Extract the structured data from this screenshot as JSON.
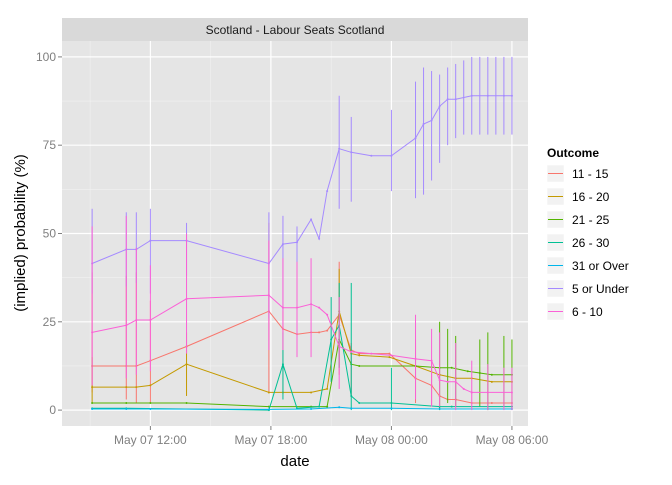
{
  "chart_data": {
    "type": "line",
    "facet_title": "Scotland - Labour Seats Scotland",
    "xlabel": "date",
    "ylabel": "(implied) probability (%)",
    "x_ticks": [
      "May 07 12:00",
      "May 07 18:00",
      "May 08 00:00",
      "May 08 06:00"
    ],
    "x_tick_hours": [
      12,
      18,
      24,
      30
    ],
    "xlim_hours": [
      7.6,
      30.8
    ],
    "y_ticks": [
      0,
      25,
      50,
      75,
      100
    ],
    "ylim": [
      -4.5,
      104.5
    ],
    "grid": true,
    "legend": {
      "title": "Outcome",
      "placement": "right",
      "entries": [
        "11 - 15",
        "16 - 20",
        "21 - 25",
        "26 - 30",
        "31 or Over",
        "5 or Under",
        "6 - 10"
      ]
    },
    "series": [
      {
        "name": "11 - 15",
        "color": "#F8766D",
        "points": [
          [
            9.1,
            12.5
          ],
          [
            10.8,
            12.5
          ],
          [
            11.3,
            12.5
          ],
          [
            12.0,
            14
          ],
          [
            13.8,
            18
          ],
          [
            17.9,
            28
          ],
          [
            18.6,
            23
          ],
          [
            19.3,
            21.5
          ],
          [
            20.0,
            22
          ],
          [
            20.4,
            22
          ],
          [
            20.8,
            22.5
          ],
          [
            21.4,
            27
          ],
          [
            22.0,
            17
          ],
          [
            22.4,
            16
          ],
          [
            23.9,
            16
          ],
          [
            25.2,
            9
          ],
          [
            26.0,
            7
          ],
          [
            26.4,
            4
          ],
          [
            26.8,
            3
          ],
          [
            27.2,
            3
          ],
          [
            28.0,
            2
          ],
          [
            29.0,
            2
          ],
          [
            30.0,
            2
          ]
        ],
        "errors": [
          [
            9.1,
            5,
            39
          ],
          [
            10.8,
            3,
            38
          ],
          [
            11.3,
            2,
            39
          ],
          [
            12.0,
            2,
            31
          ],
          [
            17.9,
            5,
            53
          ],
          [
            18.6,
            5,
            28
          ],
          [
            21.4,
            10,
            42
          ],
          [
            22.0,
            4,
            19
          ],
          [
            25.2,
            2,
            19
          ],
          [
            26.0,
            1,
            14
          ]
        ]
      },
      {
        "name": "16 - 20",
        "color": "#C49A00",
        "points": [
          [
            9.1,
            6.5
          ],
          [
            10.8,
            6.5
          ],
          [
            11.3,
            6.5
          ],
          [
            12.0,
            7
          ],
          [
            13.8,
            13
          ],
          [
            17.9,
            5
          ],
          [
            18.6,
            5
          ],
          [
            20.0,
            5
          ],
          [
            20.8,
            6
          ],
          [
            21.4,
            28
          ],
          [
            22.0,
            16
          ],
          [
            22.4,
            15.5
          ],
          [
            23.9,
            15
          ],
          [
            25.2,
            12.5
          ],
          [
            26.4,
            10
          ],
          [
            27.2,
            9
          ],
          [
            28.0,
            9
          ],
          [
            29.0,
            8
          ],
          [
            30.0,
            8
          ]
        ],
        "errors": [
          [
            9.1,
            2,
            15
          ],
          [
            13.8,
            4,
            22
          ],
          [
            21.4,
            12,
            40
          ],
          [
            25.2,
            4,
            20
          ]
        ]
      },
      {
        "name": "21 - 25",
        "color": "#53B400",
        "points": [
          [
            9.1,
            2
          ],
          [
            10.8,
            2
          ],
          [
            12.0,
            2
          ],
          [
            13.8,
            2
          ],
          [
            17.9,
            1
          ],
          [
            20.0,
            1
          ],
          [
            20.8,
            1
          ],
          [
            21.4,
            20
          ],
          [
            22.0,
            13
          ],
          [
            22.4,
            12.5
          ],
          [
            25.2,
            12.5
          ],
          [
            26.4,
            12
          ],
          [
            27.0,
            12
          ],
          [
            27.8,
            11
          ],
          [
            28.4,
            10.5
          ],
          [
            29.0,
            10
          ],
          [
            30.0,
            10
          ]
        ],
        "errors": [
          [
            26.4,
            0,
            25
          ],
          [
            26.8,
            2,
            23
          ],
          [
            27.2,
            1,
            21
          ],
          [
            28.4,
            1,
            20
          ],
          [
            28.8,
            0,
            22
          ],
          [
            29.6,
            1,
            21
          ],
          [
            30.0,
            1,
            20
          ]
        ]
      },
      {
        "name": "26 - 30",
        "color": "#00C094",
        "points": [
          [
            9.1,
            0.5
          ],
          [
            10.8,
            0.5
          ],
          [
            17.9,
            0
          ],
          [
            18.6,
            13
          ],
          [
            19.3,
            0.5
          ],
          [
            20.4,
            1
          ],
          [
            21.0,
            20
          ],
          [
            21.4,
            24
          ],
          [
            22.0,
            4
          ],
          [
            22.4,
            2
          ],
          [
            24.0,
            2
          ],
          [
            26.4,
            1
          ],
          [
            27.0,
            1
          ],
          [
            30.0,
            1
          ]
        ],
        "errors": [
          [
            18.6,
            3,
            22
          ],
          [
            21.0,
            8,
            32
          ],
          [
            21.4,
            12,
            36
          ],
          [
            22.0,
            0,
            36
          ],
          [
            24.0,
            0,
            12
          ]
        ]
      },
      {
        "name": "31 or Over",
        "color": "#00B6EB",
        "points": [
          [
            9.1,
            0.3
          ],
          [
            10.8,
            0.3
          ],
          [
            12.0,
            0.3
          ],
          [
            17.9,
            0.2
          ],
          [
            20.0,
            0.3
          ],
          [
            21.4,
            0.8
          ],
          [
            22.0,
            0.5
          ],
          [
            24.0,
            0.5
          ],
          [
            26.4,
            0.3
          ],
          [
            30.0,
            0.3
          ]
        ],
        "errors": []
      },
      {
        "name": "5 or Under",
        "color": "#A58AFF",
        "points": [
          [
            9.1,
            41.5
          ],
          [
            10.8,
            45.5
          ],
          [
            11.3,
            45.5
          ],
          [
            12.0,
            48
          ],
          [
            13.8,
            48
          ],
          [
            17.9,
            41.5
          ],
          [
            18.6,
            47
          ],
          [
            19.3,
            47.5
          ],
          [
            20.0,
            54
          ],
          [
            20.4,
            48.5
          ],
          [
            20.8,
            62
          ],
          [
            21.4,
            74
          ],
          [
            22.0,
            73
          ],
          [
            23.0,
            72
          ],
          [
            24.0,
            72
          ],
          [
            25.2,
            77
          ],
          [
            25.6,
            81
          ],
          [
            26.0,
            82
          ],
          [
            26.4,
            86
          ],
          [
            26.8,
            88
          ],
          [
            27.2,
            88
          ],
          [
            28.0,
            89
          ],
          [
            28.8,
            89
          ],
          [
            29.6,
            89
          ],
          [
            30.0,
            89
          ]
        ],
        "errors": [
          [
            9.1,
            33,
            57
          ],
          [
            10.8,
            35,
            56
          ],
          [
            11.3,
            36,
            56
          ],
          [
            12.0,
            33,
            57
          ],
          [
            13.8,
            38,
            53
          ],
          [
            17.9,
            26,
            56
          ],
          [
            18.6,
            28,
            55
          ],
          [
            19.3,
            31,
            52
          ],
          [
            21.4,
            57,
            89
          ],
          [
            22.0,
            59,
            83
          ],
          [
            24.0,
            62,
            85
          ],
          [
            25.2,
            60,
            93
          ],
          [
            25.6,
            61,
            97
          ],
          [
            26.0,
            65,
            96
          ],
          [
            26.4,
            70,
            95
          ],
          [
            26.8,
            75,
            97
          ],
          [
            27.2,
            77,
            98
          ],
          [
            27.6,
            78,
            99
          ],
          [
            28.0,
            78,
            100
          ],
          [
            28.4,
            78,
            100
          ],
          [
            28.8,
            78,
            100
          ],
          [
            29.2,
            78,
            100
          ],
          [
            29.6,
            78,
            100
          ],
          [
            30.0,
            78,
            100
          ]
        ]
      },
      {
        "name": "6 - 10",
        "color": "#FB61D7",
        "points": [
          [
            9.1,
            22
          ],
          [
            10.8,
            24
          ],
          [
            11.3,
            25.5
          ],
          [
            12.0,
            25.5
          ],
          [
            13.8,
            31.5
          ],
          [
            17.9,
            32.5
          ],
          [
            18.6,
            29
          ],
          [
            19.3,
            29
          ],
          [
            20.0,
            30
          ],
          [
            20.4,
            29
          ],
          [
            20.8,
            27
          ],
          [
            21.4,
            18
          ],
          [
            22.0,
            16.5
          ],
          [
            23.0,
            16
          ],
          [
            24.0,
            15.5
          ],
          [
            25.2,
            14.5
          ],
          [
            26.0,
            14
          ],
          [
            26.4,
            8.5
          ],
          [
            26.8,
            8
          ],
          [
            27.2,
            8
          ],
          [
            27.6,
            6
          ],
          [
            28.0,
            5
          ],
          [
            28.8,
            5
          ],
          [
            30.0,
            5
          ]
        ],
        "errors": [
          [
            9.1,
            7,
            52
          ],
          [
            10.8,
            9,
            55
          ],
          [
            11.3,
            10,
            46
          ],
          [
            12.0,
            11,
            41
          ],
          [
            13.8,
            16,
            50
          ],
          [
            17.9,
            17,
            48
          ],
          [
            18.6,
            17,
            43
          ],
          [
            19.3,
            15,
            42
          ],
          [
            20.0,
            15,
            43
          ],
          [
            21.4,
            6,
            32
          ],
          [
            25.2,
            3,
            27
          ],
          [
            26.0,
            1,
            23
          ],
          [
            26.4,
            1,
            22
          ],
          [
            27.2,
            0,
            19
          ],
          [
            28.0,
            0,
            14
          ],
          [
            28.8,
            0,
            13
          ],
          [
            29.6,
            0,
            12
          ],
          [
            30.0,
            0,
            12
          ]
        ]
      }
    ]
  }
}
